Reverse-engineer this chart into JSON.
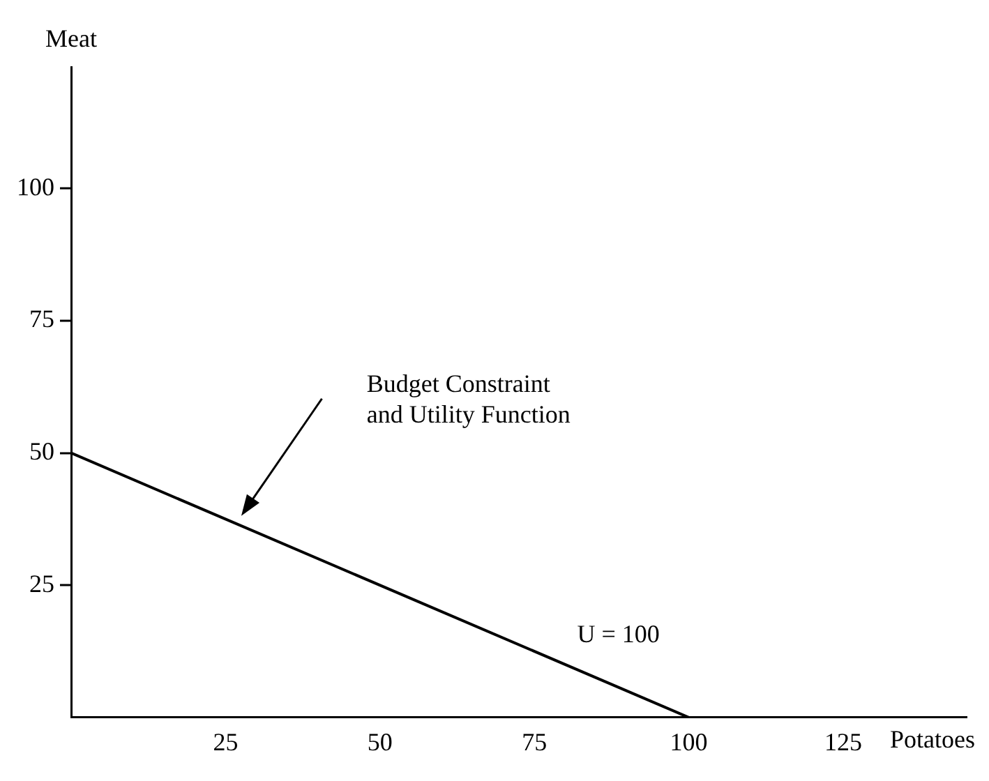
{
  "chart_data": {
    "type": "line",
    "xlabel": "Potatoes",
    "ylabel": "Meat",
    "x": [
      0,
      100
    ],
    "series": [
      {
        "color": "#000000",
        "values": [
          50,
          0
        ]
      }
    ],
    "xlim": [
      0,
      145
    ],
    "ylim": [
      0,
      123
    ],
    "xticks": [
      25,
      50,
      75,
      100,
      125
    ],
    "yticks": [
      25,
      50,
      75,
      100
    ],
    "marker": "none",
    "line_style": "solid",
    "grid": false,
    "legend": false,
    "annotations": [
      "Budget Constraint\nand Utility Function",
      "U = 100"
    ]
  }
}
